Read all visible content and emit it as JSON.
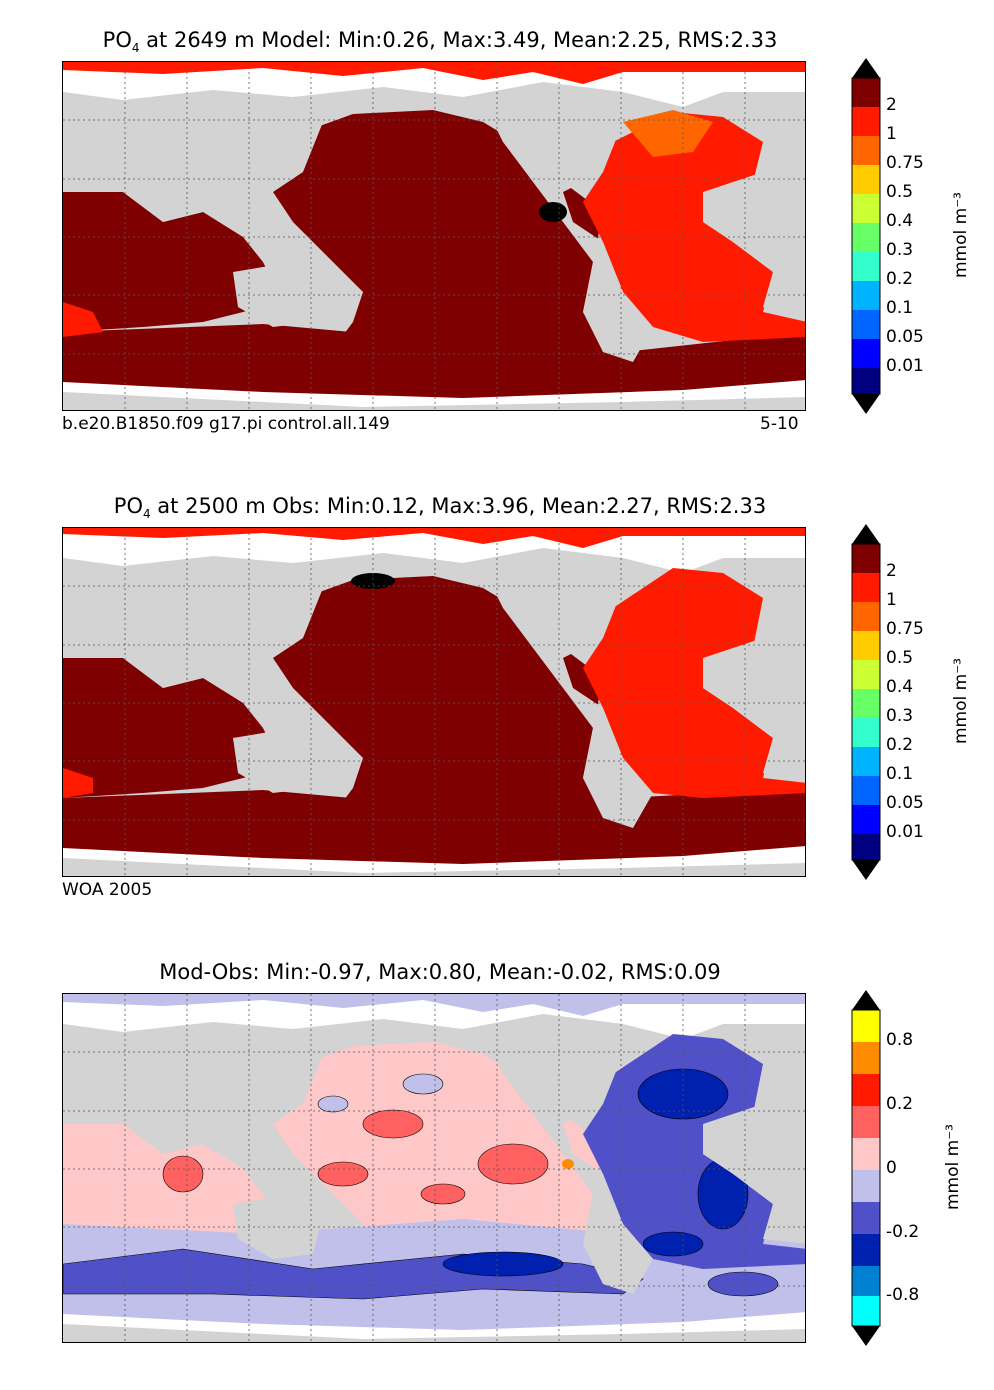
{
  "panels": [
    {
      "id": "model",
      "title_prefix": "PO",
      "title_sub": "4",
      "title_suffix": " at 2649 m Model: Min:0.26, Max:3.49, Mean:2.25, RMS:2.33",
      "caption_left": "b.e20.B1850.f09 g17.pi control.all.149",
      "caption_right": "5-10",
      "units": "mmol m⁻³",
      "colorbar": {
        "labels": [
          "2",
          "1",
          "0.75",
          "0.5",
          "0.4",
          "0.3",
          "0.2",
          "0.1",
          "0.05",
          "0.01"
        ],
        "colors": [
          "#7f0000",
          "#ff1a00",
          "#ff6600",
          "#ffcc00",
          "#ccff33",
          "#66ff66",
          "#33ffcc",
          "#00b3ff",
          "#0066ff",
          "#0000ff",
          "#000080"
        ]
      }
    },
    {
      "id": "obs",
      "title_prefix": "PO",
      "title_sub": "4",
      "title_suffix": " at 2500 m Obs: Min:0.12, Max:3.96, Mean:2.27, RMS:2.33",
      "caption_left": "WOA 2005",
      "caption_right": "",
      "units": "mmol m⁻³",
      "colorbar": {
        "labels": [
          "2",
          "1",
          "0.75",
          "0.5",
          "0.4",
          "0.3",
          "0.2",
          "0.1",
          "0.05",
          "0.01"
        ],
        "colors": [
          "#7f0000",
          "#ff1a00",
          "#ff6600",
          "#ffcc00",
          "#ccff33",
          "#66ff66",
          "#33ffcc",
          "#00b3ff",
          "#0066ff",
          "#0000ff",
          "#000080"
        ]
      }
    },
    {
      "id": "diff",
      "title_prefix": "Mod-Obs: Min:-0.97, Max:0.80, Mean:-0.02, RMS:0.09",
      "title_sub": "",
      "title_suffix": "",
      "caption_left": "",
      "caption_right": "",
      "units": "mmol m⁻³",
      "colorbar": {
        "labels": [
          "0.8",
          "0.2",
          "0",
          "-0.2",
          "-0.8"
        ],
        "colors": [
          "#ffff00",
          "#ff8c00",
          "#ff1a00",
          "#ff6060",
          "#ffc8c8",
          "#c0c0ea",
          "#5050c8",
          "#0020b0",
          "#0080d0",
          "#00ffff"
        ]
      }
    }
  ],
  "colors": {
    "land": "#d3d3d3",
    "nodata": "#ffffff",
    "pacific_model": "#7f0000",
    "atlantic_model": "#ff1a00"
  }
}
